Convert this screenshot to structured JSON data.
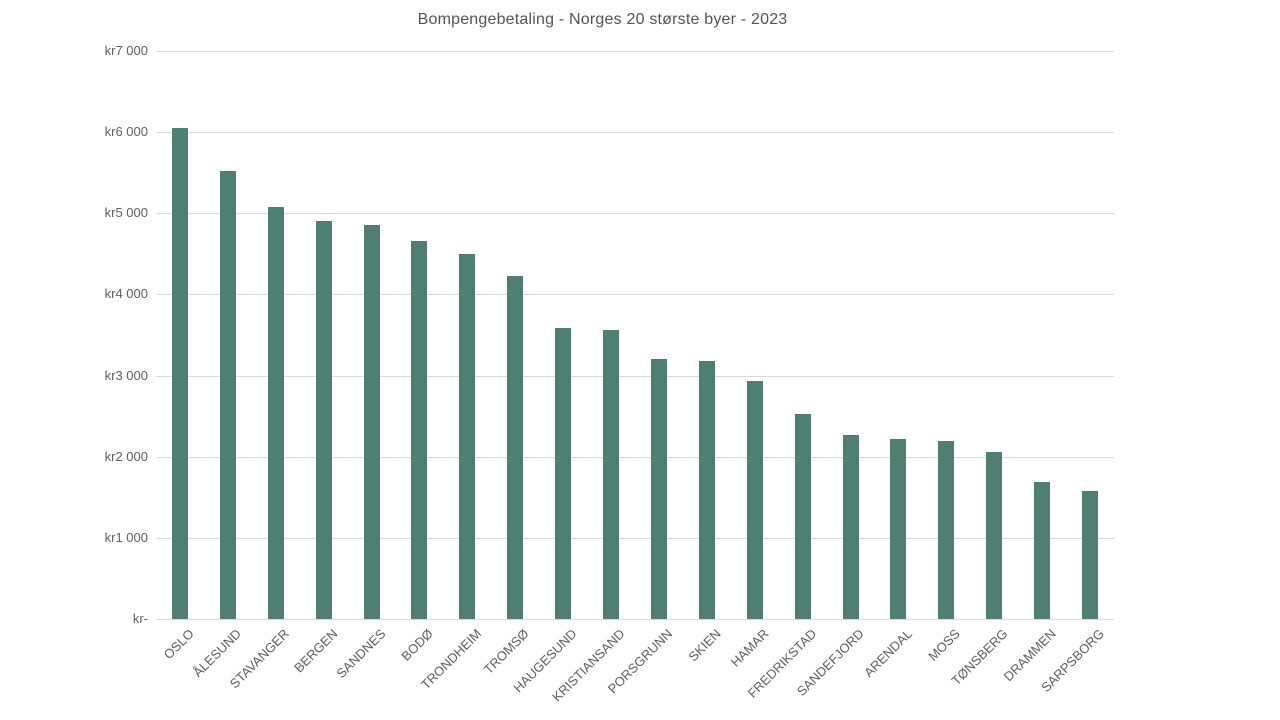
{
  "title": "Bompengebetaling - Norges 20 største byer - 2023",
  "colors": {
    "background": "#ffffff",
    "bar": "#4f7f70",
    "gridline": "#d9d9d9",
    "axis_line": "#d9d9d9",
    "title_text": "#545454",
    "tick_text": "#5f5f5f"
  },
  "chart_data": {
    "type": "bar",
    "title": "Bompengebetaling - Norges 20 største byer - 2023",
    "categories": [
      "OSLO",
      "ÅLESUND",
      "STAVANGER",
      "BERGEN",
      "SANDNES",
      "BODØ",
      "TRONDHEIM",
      "TROMSØ",
      "HAUGESUND",
      "KRISTIANSAND",
      "PORSGRUNN",
      "SKIEN",
      "HAMAR",
      "FREDRIKSTAD",
      "SANDEFJORD",
      "ARENDAL",
      "MOSS",
      "TØNSBERG",
      "DRAMMEN",
      "SARPSBORG"
    ],
    "values": [
      6050,
      5520,
      5080,
      4900,
      4860,
      4660,
      4500,
      4230,
      3590,
      3560,
      3200,
      3180,
      2930,
      2530,
      2270,
      2220,
      2200,
      2060,
      1690,
      1580
    ],
    "unit": "kr",
    "xlabel": "",
    "ylabel": "",
    "ylim": [
      0,
      7000
    ],
    "ytick_step": 1000,
    "ytick_labels": [
      "kr-",
      "kr1 000",
      "kr2 000",
      "kr3 000",
      "kr4 000",
      "kr5 000",
      "kr6 000",
      "kr7 000"
    ],
    "grid": true,
    "legend": false,
    "bar_color": "#4f7f70",
    "category_label_rotation_deg": -45
  }
}
